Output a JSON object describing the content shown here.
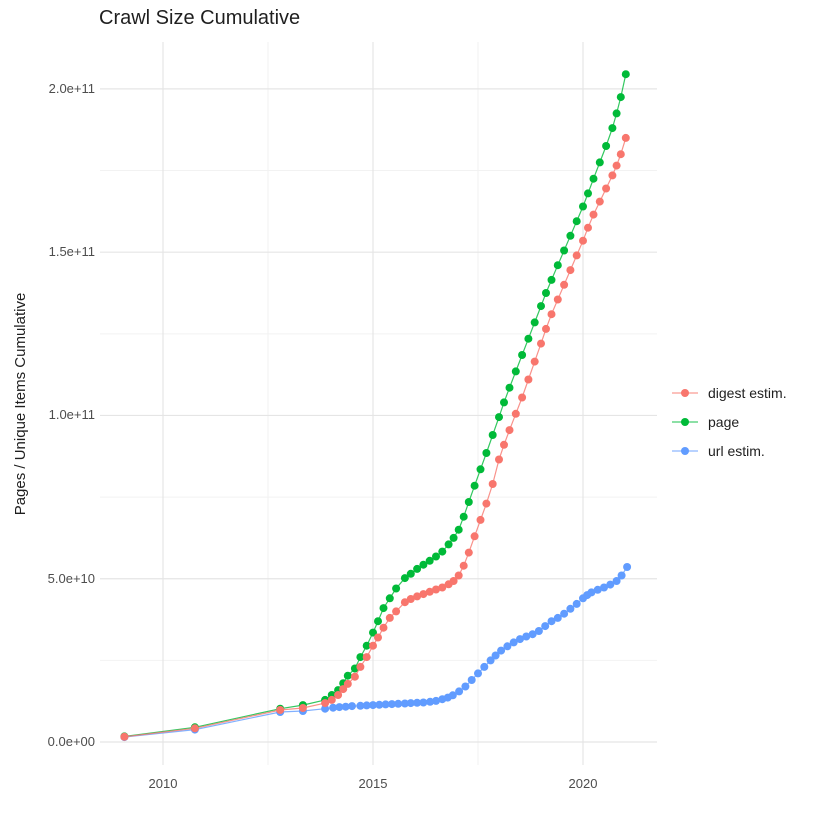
{
  "title": "Crawl Size Cumulative",
  "y_axis": {
    "label": "Pages / Unique Items Cumulative",
    "ticks": [
      "0.0e+00",
      "5.0e+10",
      "1.0e+11",
      "1.5e+11",
      "2.0e+11"
    ]
  },
  "x_axis": {
    "ticks": [
      "2010",
      "2015",
      "2020"
    ]
  },
  "legend": {
    "items": [
      {
        "label": "digest estim.",
        "color": "#F8766D"
      },
      {
        "label": "page",
        "color": "#00BA38"
      },
      {
        "label": "url estim.",
        "color": "#619CFF"
      }
    ]
  },
  "colors": {
    "background": "#ffffff",
    "grid_major": "#e5e5e5",
    "grid_minor": "#f2f2f2",
    "tick_text": "#4d4d4d",
    "text": "#1f1f1f",
    "digest": "#F8766D",
    "page": "#00BA38",
    "url": "#619CFF"
  },
  "chart_data": {
    "type": "line",
    "title": "Crawl Size Cumulative",
    "xlabel": "",
    "ylabel": "Pages / Unique Items Cumulative",
    "x_unit": "year (decimal, one point per crawl)",
    "point_value_scale": 1000000000,
    "y_values_in": "billions of pages / unique items",
    "xlim": [
      2008.5,
      2021.75
    ],
    "ylim": [
      0,
      214000000000
    ],
    "x_tick_values": [
      2010,
      2015,
      2020
    ],
    "y_tick_values": [
      0,
      50,
      100,
      150,
      200
    ],
    "y_tick_labels": [
      "0.0e+00",
      "5.0e+10",
      "1.0e+11",
      "1.5e+11",
      "2.0e+11"
    ],
    "x_minor_ticks": [
      2012.5,
      2017.5
    ],
    "y_minor_ticks": [
      25,
      75,
      125,
      175
    ],
    "grid": "major+minor",
    "legend_position": "right",
    "series": [
      {
        "name": "digest estim.",
        "color": "#F8766D",
        "points": [
          [
            2009.08,
            1.6
          ],
          [
            2010.76,
            4.2
          ],
          [
            2012.79,
            9.8
          ],
          [
            2013.33,
            10.4
          ],
          [
            2013.86,
            11.9
          ],
          [
            2014.02,
            12.9
          ],
          [
            2014.17,
            14.4
          ],
          [
            2014.29,
            16.2
          ],
          [
            2014.4,
            17.8
          ],
          [
            2014.57,
            20
          ],
          [
            2014.7,
            23
          ],
          [
            2014.85,
            26
          ],
          [
            2015.0,
            29.5
          ],
          [
            2015.12,
            32
          ],
          [
            2015.25,
            35
          ],
          [
            2015.4,
            38
          ],
          [
            2015.55,
            40
          ],
          [
            2015.76,
            42.8
          ],
          [
            2015.9,
            43.8
          ],
          [
            2016.05,
            44.6
          ],
          [
            2016.2,
            45.3
          ],
          [
            2016.35,
            46
          ],
          [
            2016.5,
            46.7
          ],
          [
            2016.65,
            47.3
          ],
          [
            2016.8,
            48.3
          ],
          [
            2016.92,
            49.3
          ],
          [
            2017.04,
            51
          ],
          [
            2017.16,
            54
          ],
          [
            2017.28,
            58
          ],
          [
            2017.42,
            63
          ],
          [
            2017.56,
            68
          ],
          [
            2017.7,
            73
          ],
          [
            2017.85,
            79
          ],
          [
            2018.0,
            86.5
          ],
          [
            2018.12,
            91
          ],
          [
            2018.25,
            95.5
          ],
          [
            2018.4,
            100.5
          ],
          [
            2018.55,
            105.5
          ],
          [
            2018.7,
            111
          ],
          [
            2018.85,
            116.5
          ],
          [
            2019.0,
            122
          ],
          [
            2019.12,
            126.5
          ],
          [
            2019.25,
            131
          ],
          [
            2019.4,
            135.5
          ],
          [
            2019.55,
            140
          ],
          [
            2019.7,
            144.5
          ],
          [
            2019.85,
            149
          ],
          [
            2020.0,
            153.5
          ],
          [
            2020.12,
            157.5
          ],
          [
            2020.25,
            161.5
          ],
          [
            2020.4,
            165.5
          ],
          [
            2020.55,
            169.5
          ],
          [
            2020.7,
            173.5
          ],
          [
            2020.8,
            176.5
          ],
          [
            2020.9,
            180
          ],
          [
            2021.02,
            185
          ]
        ]
      },
      {
        "name": "page",
        "color": "#00BA38",
        "points": [
          [
            2009.08,
            1.7
          ],
          [
            2010.76,
            4.5
          ],
          [
            2012.79,
            10.2
          ],
          [
            2013.33,
            11.3
          ],
          [
            2013.86,
            12.9
          ],
          [
            2014.02,
            14.4
          ],
          [
            2014.17,
            15.9
          ],
          [
            2014.29,
            18
          ],
          [
            2014.4,
            20.3
          ],
          [
            2014.57,
            22.5
          ],
          [
            2014.7,
            26
          ],
          [
            2014.85,
            29.5
          ],
          [
            2015.0,
            33.5
          ],
          [
            2015.12,
            37
          ],
          [
            2015.25,
            41
          ],
          [
            2015.4,
            44
          ],
          [
            2015.55,
            47
          ],
          [
            2015.76,
            50.2
          ],
          [
            2015.9,
            51.5
          ],
          [
            2016.05,
            53
          ],
          [
            2016.2,
            54.3
          ],
          [
            2016.35,
            55.5
          ],
          [
            2016.5,
            56.8
          ],
          [
            2016.65,
            58.3
          ],
          [
            2016.8,
            60.5
          ],
          [
            2016.92,
            62.5
          ],
          [
            2017.04,
            65
          ],
          [
            2017.16,
            69
          ],
          [
            2017.28,
            73.5
          ],
          [
            2017.42,
            78.5
          ],
          [
            2017.56,
            83.5
          ],
          [
            2017.7,
            88.5
          ],
          [
            2017.85,
            94
          ],
          [
            2018.0,
            99.5
          ],
          [
            2018.12,
            104
          ],
          [
            2018.25,
            108.5
          ],
          [
            2018.4,
            113.5
          ],
          [
            2018.55,
            118.5
          ],
          [
            2018.7,
            123.5
          ],
          [
            2018.85,
            128.5
          ],
          [
            2019.0,
            133.5
          ],
          [
            2019.12,
            137.5
          ],
          [
            2019.25,
            141.5
          ],
          [
            2019.4,
            146
          ],
          [
            2019.55,
            150.5
          ],
          [
            2019.7,
            155
          ],
          [
            2019.85,
            159.5
          ],
          [
            2020.0,
            164
          ],
          [
            2020.12,
            168
          ],
          [
            2020.25,
            172.5
          ],
          [
            2020.4,
            177.5
          ],
          [
            2020.55,
            182.5
          ],
          [
            2020.7,
            188
          ],
          [
            2020.8,
            192.5
          ],
          [
            2020.9,
            197.5
          ],
          [
            2021.02,
            204.5
          ]
        ]
      },
      {
        "name": "url estim.",
        "color": "#619CFF",
        "points": [
          [
            2009.08,
            1.5
          ],
          [
            2010.76,
            3.8
          ],
          [
            2012.79,
            9.2
          ],
          [
            2013.33,
            9.5
          ],
          [
            2013.86,
            10.2
          ],
          [
            2014.05,
            10.5
          ],
          [
            2014.2,
            10.7
          ],
          [
            2014.35,
            10.8
          ],
          [
            2014.5,
            11
          ],
          [
            2014.7,
            11.1
          ],
          [
            2014.85,
            11.2
          ],
          [
            2015.0,
            11.3
          ],
          [
            2015.15,
            11.4
          ],
          [
            2015.3,
            11.5
          ],
          [
            2015.45,
            11.6
          ],
          [
            2015.6,
            11.7
          ],
          [
            2015.76,
            11.8
          ],
          [
            2015.9,
            11.9
          ],
          [
            2016.05,
            12
          ],
          [
            2016.2,
            12.1
          ],
          [
            2016.36,
            12.3
          ],
          [
            2016.5,
            12.6
          ],
          [
            2016.65,
            13.1
          ],
          [
            2016.78,
            13.6
          ],
          [
            2016.9,
            14.3
          ],
          [
            2017.05,
            15.5
          ],
          [
            2017.2,
            17
          ],
          [
            2017.35,
            19
          ],
          [
            2017.5,
            21
          ],
          [
            2017.65,
            23
          ],
          [
            2017.8,
            25
          ],
          [
            2017.92,
            26.5
          ],
          [
            2018.05,
            28
          ],
          [
            2018.2,
            29.3
          ],
          [
            2018.35,
            30.5
          ],
          [
            2018.5,
            31.5
          ],
          [
            2018.65,
            32.3
          ],
          [
            2018.8,
            33
          ],
          [
            2018.95,
            34
          ],
          [
            2019.1,
            35.5
          ],
          [
            2019.25,
            37
          ],
          [
            2019.4,
            38
          ],
          [
            2019.55,
            39.3
          ],
          [
            2019.7,
            40.8
          ],
          [
            2019.85,
            42.3
          ],
          [
            2020.0,
            44
          ],
          [
            2020.1,
            45
          ],
          [
            2020.2,
            45.8
          ],
          [
            2020.35,
            46.6
          ],
          [
            2020.5,
            47.3
          ],
          [
            2020.65,
            48.2
          ],
          [
            2020.8,
            49.3
          ],
          [
            2020.92,
            51
          ],
          [
            2021.05,
            53.6
          ]
        ]
      }
    ]
  }
}
